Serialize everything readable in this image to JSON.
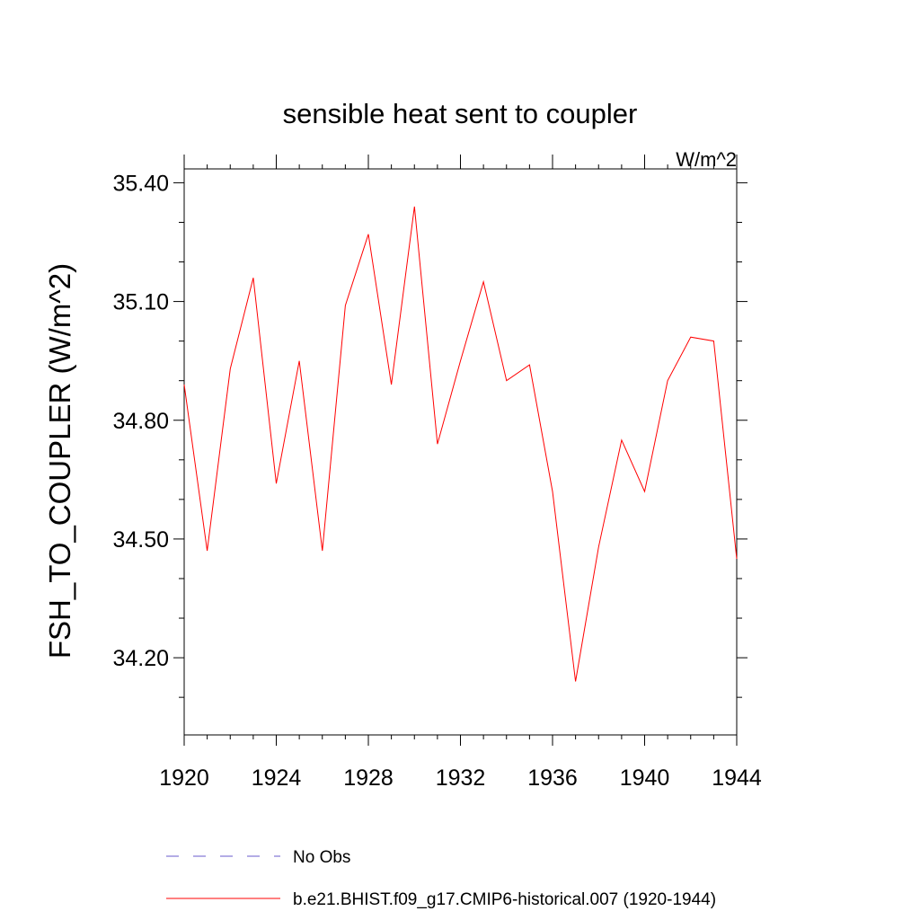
{
  "chart_data": {
    "type": "line",
    "title": "sensible heat sent to coupler",
    "units": "W/m^2",
    "ylabel": "FSH_TO_COUPLER  (W/m^2)",
    "xlabel": "",
    "xlim": [
      1920,
      1944
    ],
    "ylim": [
      34.005,
      35.435
    ],
    "x_ticks": [
      1920,
      1924,
      1928,
      1932,
      1936,
      1940,
      1944
    ],
    "x_tick_labels": [
      "1920",
      "1924",
      "1928",
      "1932",
      "1936",
      "1940",
      "1944"
    ],
    "y_ticks": [
      34.2,
      34.5,
      34.8,
      35.1,
      35.4
    ],
    "y_tick_labels": [
      "34.20",
      "34.50",
      "34.80",
      "35.10",
      "35.40"
    ],
    "y_minor_step": 0.1,
    "x_minor_step": 1,
    "grid": false,
    "legend_placement": "bottom",
    "series": [
      {
        "name": "b.e21.BHIST.f09_g17.CMIP6-historical.007 (1920-1944)",
        "color": "#ff0000",
        "style": "solid",
        "x": [
          1920,
          1921,
          1922,
          1923,
          1924,
          1925,
          1926,
          1927,
          1928,
          1929,
          1930,
          1931,
          1932,
          1933,
          1934,
          1935,
          1936,
          1937,
          1938,
          1939,
          1940,
          1941,
          1942,
          1943,
          1944
        ],
        "y": [
          34.89,
          34.47,
          34.93,
          35.16,
          34.64,
          34.95,
          34.47,
          35.09,
          35.27,
          34.89,
          35.34,
          34.74,
          34.95,
          35.15,
          34.9,
          34.94,
          34.62,
          34.14,
          34.48,
          34.75,
          34.62,
          34.9,
          35.01,
          35.0,
          34.45
        ]
      }
    ],
    "legend": [
      {
        "label": "No Obs",
        "color": "#6a5acd",
        "style": "dashed"
      },
      {
        "label": "b.e21.BHIST.f09_g17.CMIP6-historical.007 (1920-1944)",
        "color": "#ff0000",
        "style": "solid"
      }
    ]
  }
}
